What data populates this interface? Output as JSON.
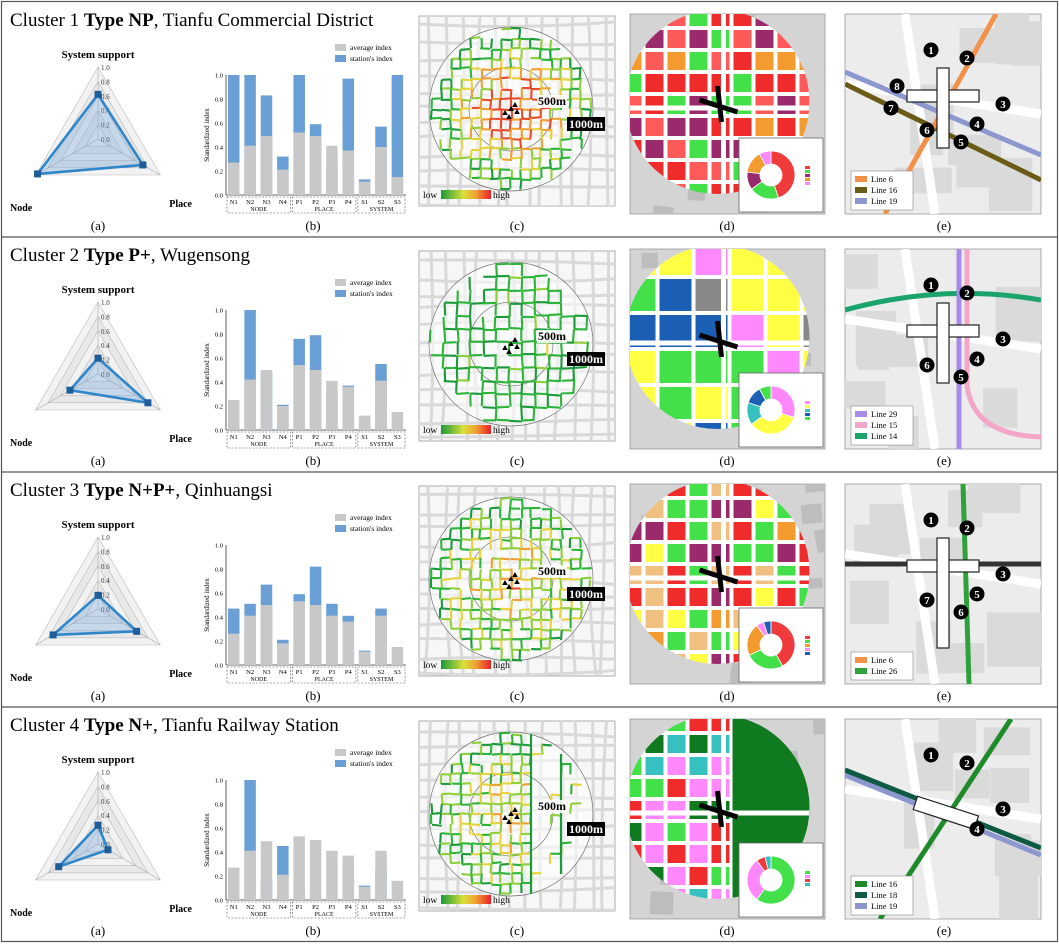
{
  "figure": {
    "clusters": [
      {
        "title_prefix": "Cluster 1 ",
        "title_type": "Type NP",
        "title_suffix": ", Tianfu Commercial District",
        "radar": {
          "labels": {
            "top": "System support",
            "left": "Node",
            "right": "Place"
          },
          "values": {
            "system": 0.62,
            "node": 0.97,
            "place": 0.72
          }
        },
        "bars": {
          "categories": [
            "N1",
            "N2",
            "N3",
            "N4",
            "P1",
            "P2",
            "P3",
            "P4",
            "S1",
            "S2",
            "S3"
          ],
          "average": [
            0.27,
            0.41,
            0.49,
            0.21,
            0.52,
            0.49,
            0.41,
            0.37,
            0.11,
            0.4,
            0.15
          ],
          "station": [
            1.0,
            1.0,
            0.83,
            0.32,
            1.0,
            0.59,
            0.25,
            0.97,
            0.13,
            0.57,
            1.0
          ],
          "show_legend": true
        },
        "map_c": {
          "label_500": "500m",
          "label_1000": "1000m",
          "legend_low": "low",
          "legend_high": "high",
          "style": "dense"
        },
        "map_d": {
          "palette": "red",
          "donut": [
            {
              "v": 0.45,
              "c": "#ef3b3b"
            },
            {
              "v": 0.2,
              "c": "#44e04a"
            },
            {
              "v": 0.12,
              "c": "#9b2a6c"
            },
            {
              "v": 0.15,
              "c": "#f39b2f"
            },
            {
              "v": 0.08,
              "c": "#ff88ff"
            }
          ]
        },
        "map_e": {
          "lines": [
            {
              "label": "Line 6",
              "color": "#f2924a"
            },
            {
              "label": "Line 16",
              "color": "#6a5c16"
            },
            {
              "label": "Line 19",
              "color": "#8c97cf"
            }
          ],
          "exits": [
            "1",
            "2",
            "3",
            "4",
            "5",
            "6",
            "7",
            "8"
          ]
        }
      },
      {
        "title_prefix": "Cluster 2 ",
        "title_type": "Type P+",
        "title_suffix": ", Wugensong",
        "radar": {
          "labels": {
            "top": "System support",
            "left": "Node",
            "right": "Place"
          },
          "values": {
            "system": 0.22,
            "node": 0.45,
            "place": 0.8
          }
        },
        "bars": {
          "categories": [
            "N1",
            "N2",
            "N3",
            "N4",
            "P1",
            "P2",
            "P3",
            "P4",
            "S1",
            "S2",
            "S3"
          ],
          "average": [
            0.25,
            0.42,
            0.5,
            0.2,
            0.54,
            0.5,
            0.41,
            0.36,
            0.12,
            0.41,
            0.15
          ],
          "station": [
            0.13,
            1.0,
            0.49,
            0.21,
            0.76,
            0.79,
            0.3,
            0.37,
            0.07,
            0.55,
            0.0
          ],
          "show_legend": true
        },
        "map_c": {
          "label_500": "500m",
          "label_1000": "1000m",
          "legend_low": "low",
          "legend_high": "high",
          "style": "green"
        },
        "map_d": {
          "palette": "yellow",
          "donut": [
            {
              "v": 0.3,
              "c": "#ff88ff"
            },
            {
              "v": 0.35,
              "c": "#ffff44"
            },
            {
              "v": 0.15,
              "c": "#36c0c0"
            },
            {
              "v": 0.12,
              "c": "#1a5fb4"
            },
            {
              "v": 0.08,
              "c": "#44e04a"
            }
          ]
        },
        "map_e": {
          "lines": [
            {
              "label": "Line 29",
              "color": "#a68be8"
            },
            {
              "label": "Line 15",
              "color": "#f4a6c8"
            },
            {
              "label": "Line 14",
              "color": "#1aa36a"
            }
          ],
          "exits": [
            "1",
            "2",
            "3",
            "4",
            "5",
            "6"
          ]
        }
      },
      {
        "title_prefix": "Cluster 3 ",
        "title_type": "Type N+P+",
        "title_suffix": ", Qinhuangsi",
        "radar": {
          "labels": {
            "top": "System support",
            "left": "Node",
            "right": "Place"
          },
          "values": {
            "system": 0.19,
            "node": 0.72,
            "place": 0.62
          }
        },
        "bars": {
          "categories": [
            "N1",
            "N2",
            "N3",
            "N4",
            "P1",
            "P2",
            "P3",
            "P4",
            "S1",
            "S2",
            "S3"
          ],
          "average": [
            0.26,
            0.41,
            0.5,
            0.18,
            0.53,
            0.5,
            0.41,
            0.36,
            0.11,
            0.41,
            0.15
          ],
          "station": [
            0.47,
            0.51,
            0.67,
            0.21,
            0.59,
            0.82,
            0.51,
            0.41,
            0.12,
            0.47,
            0.0
          ],
          "show_legend": true
        },
        "map_c": {
          "label_500": "500m",
          "label_1000": "1000m",
          "legend_low": "low",
          "legend_high": "high",
          "style": "mixed"
        },
        "map_d": {
          "palette": "orange",
          "donut": [
            {
              "v": 0.42,
              "c": "#ef3b3b"
            },
            {
              "v": 0.26,
              "c": "#44e04a"
            },
            {
              "v": 0.22,
              "c": "#f39b2f"
            },
            {
              "v": 0.05,
              "c": "#ff88ff"
            },
            {
              "v": 0.05,
              "c": "#1a5fb4"
            }
          ]
        },
        "map_e": {
          "lines": [
            {
              "label": "Line 6",
              "color": "#f2924a"
            },
            {
              "label": "Line 26",
              "color": "#2fa13a"
            }
          ],
          "exits": [
            "1",
            "2",
            "3",
            "5",
            "6",
            "7"
          ]
        }
      },
      {
        "title_prefix": "Cluster 4 ",
        "title_type": "Type N+",
        "title_suffix": ", Tianfu Railway Station",
        "radar": {
          "labels": {
            "top": "System support",
            "left": "Node",
            "right": "Place"
          },
          "values": {
            "system": 0.26,
            "node": 0.63,
            "place": 0.16
          }
        },
        "bars": {
          "categories": [
            "N1",
            "N2",
            "N3",
            "N4",
            "P1",
            "P2",
            "P3",
            "P4",
            "S1",
            "S2",
            "S3"
          ],
          "average": [
            0.27,
            0.41,
            0.49,
            0.21,
            0.53,
            0.5,
            0.41,
            0.37,
            0.11,
            0.41,
            0.16
          ],
          "station": [
            0.19,
            1.0,
            0.16,
            0.45,
            0.08,
            0.0,
            0.0,
            0.3,
            0.12,
            0.26,
            0.0
          ],
          "show_legend": true
        },
        "map_c": {
          "label_500": "500m",
          "label_1000": "1000m",
          "legend_low": "low",
          "legend_high": "high",
          "style": "partial"
        },
        "map_d": {
          "palette": "pink",
          "donut": [
            {
              "v": 0.6,
              "c": "#44e04a"
            },
            {
              "v": 0.3,
              "c": "#ff88ff"
            },
            {
              "v": 0.06,
              "c": "#ef3b3b"
            },
            {
              "v": 0.04,
              "c": "#36c0c0"
            }
          ]
        },
        "map_e": {
          "lines": [
            {
              "label": "Line 16",
              "color": "#1f8a2a"
            },
            {
              "label": "Line 18",
              "color": "#0f5a44"
            },
            {
              "label": "Line 19",
              "color": "#8c97cf"
            }
          ],
          "exits": [
            "1",
            "2",
            "3",
            "4"
          ]
        }
      }
    ],
    "shared": {
      "panel_labels": [
        "(a)",
        "(b)",
        "(c)",
        "(d)",
        "(e)"
      ],
      "radar_ticks": [
        "1.0",
        "0.8",
        "0.6",
        "0.4",
        "0.2",
        "0.0"
      ],
      "bar_ticks": [
        "1.0",
        "0.8",
        "0.6",
        "0.4",
        "0.2",
        "0.0"
      ],
      "y_axis_title": "Standardized index",
      "group_labels": [
        "NODE",
        "PLACE",
        "SYSTEM"
      ],
      "legend_average": "average index",
      "legend_station": "station's index",
      "colors": {
        "radar_blue": "#2f86c8",
        "bar_avg": "#c8c8c8",
        "bar_station": "#6a9fd6"
      }
    }
  }
}
